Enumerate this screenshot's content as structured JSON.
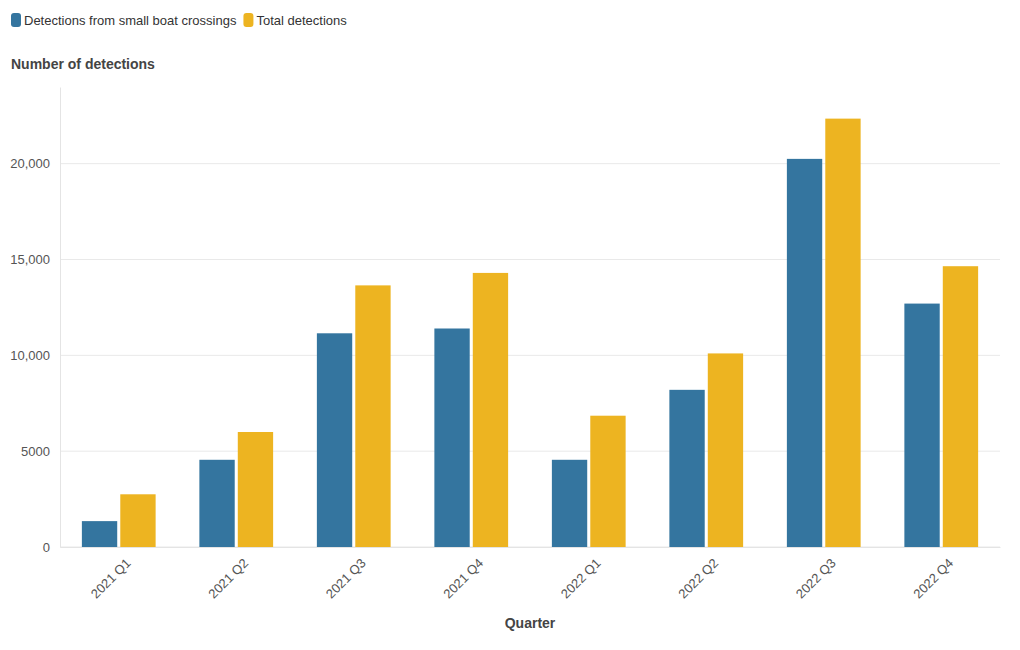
{
  "chart_data": {
    "type": "bar",
    "y_label": "Number of detections",
    "x_label": "Quarter",
    "categories": [
      "2021 Q1",
      "2021 Q2",
      "2021 Q3",
      "2021 Q4",
      "2022 Q1",
      "2022 Q2",
      "2022 Q3",
      "2022 Q4"
    ],
    "series": [
      {
        "name": "Detections from small boat crossings",
        "color": "#34759f",
        "values": [
          1350,
          4550,
          11150,
          11400,
          4550,
          8200,
          20250,
          12700
        ]
      },
      {
        "name": "Total detections",
        "color": "#edb421",
        "values": [
          2750,
          6000,
          13650,
          14300,
          6850,
          10100,
          22350,
          14650
        ]
      }
    ],
    "ylim": [
      0,
      24000
    ],
    "yticks": [
      0,
      5000,
      {
        "value": 10000,
        "label": "10,000"
      },
      {
        "value": 15000,
        "label": "15,000"
      },
      {
        "value": 20000,
        "label": "20,000"
      }
    ],
    "grid": true,
    "legend": "top-left"
  }
}
